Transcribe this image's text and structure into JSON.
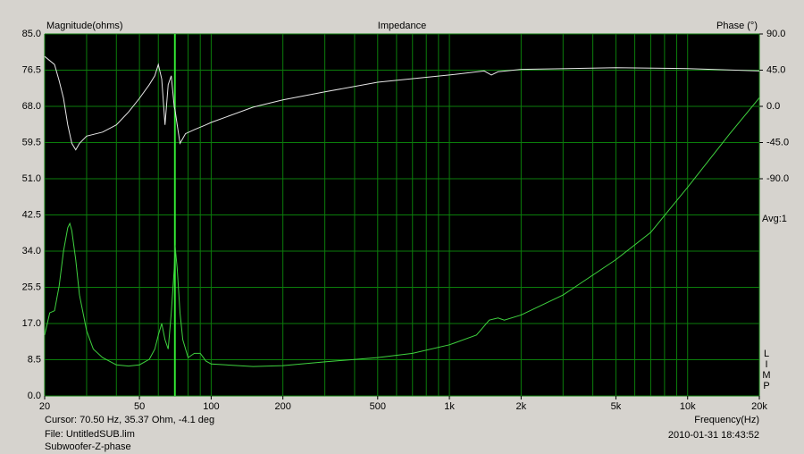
{
  "chart_data": {
    "type": "line",
    "title": "Impedance",
    "y_label": "Magnitude(ohms)",
    "y2_label": "Phase (°)",
    "x_label": "Frequency(Hz)",
    "averaging": "Avg:1",
    "watermark": "LIMP",
    "cursor_text": "Cursor: 70.50 Hz, 35.37 Ohm, -4.1 deg",
    "file_text": "File: UntitledSUB.lim",
    "measurement_name": "Subwoofer-Z-phase",
    "timestamp": "2010-01-31 18:43:52",
    "x_scale": "log",
    "xlim": [
      20,
      20000
    ],
    "xticks": [
      20,
      50,
      100,
      200,
      500,
      {
        "value": 1000,
        "label": "1k"
      },
      {
        "value": 2000,
        "label": "2k"
      },
      {
        "value": 5000,
        "label": "5k"
      },
      {
        "value": 10000,
        "label": "10k"
      },
      {
        "value": 20000,
        "label": "20k"
      }
    ],
    "xgrid": [
      20,
      30,
      40,
      50,
      60,
      70,
      80,
      90,
      100,
      200,
      300,
      400,
      500,
      600,
      700,
      800,
      900,
      1000,
      2000,
      3000,
      4000,
      5000,
      6000,
      7000,
      8000,
      9000,
      10000,
      20000
    ],
    "ylim": [
      0,
      85
    ],
    "yticks": [
      {
        "value": 0,
        "label": "0.0"
      },
      8.5,
      {
        "value": 17,
        "label": "17.0"
      },
      25.5,
      {
        "value": 34,
        "label": "34.0"
      },
      42.5,
      {
        "value": 51,
        "label": "51.0"
      },
      59.5,
      {
        "value": 68,
        "label": "68.0"
      },
      76.5,
      {
        "value": 85,
        "label": "85.0"
      }
    ],
    "y2lim": [
      -360,
      90
    ],
    "y2ticks": [
      {
        "value": 90,
        "label": "90.0"
      },
      {
        "value": 45,
        "label": "45.0"
      },
      {
        "value": 0,
        "label": "0.0"
      },
      {
        "value": -45,
        "label": "-45.0"
      },
      {
        "value": -90,
        "label": "-90.0"
      }
    ],
    "grid": true,
    "grid_color": "#0b7d0b",
    "cursor_x": 70.5,
    "cursor_color": "#3cff3c",
    "series": [
      {
        "name": "Impedance",
        "color": "#3fd23f",
        "x": [
          20,
          21,
          22,
          23,
          24,
          25,
          25.5,
          26,
          27,
          28,
          30,
          32,
          35,
          40,
          45,
          50,
          55,
          58,
          60,
          62,
          64,
          66,
          68,
          70,
          70.5,
          72,
          74,
          76,
          80,
          85,
          90,
          95,
          100,
          150,
          200,
          300,
          500,
          700,
          1000,
          1300,
          1470,
          1600,
          1700,
          2000,
          3000,
          5000,
          7000,
          10000,
          15000,
          20000
        ],
        "values": [
          14.3,
          19.5,
          20,
          25.8,
          34,
          39.5,
          40.5,
          38.8,
          32,
          23.7,
          15.3,
          11,
          9,
          7.3,
          7,
          7.3,
          8.6,
          11,
          14.3,
          17,
          13.2,
          11,
          19.5,
          30,
          35.37,
          30,
          19.5,
          13.2,
          9,
          10,
          10,
          8.2,
          7.5,
          6.9,
          7.1,
          8,
          9,
          10,
          12,
          14.3,
          17.8,
          18.3,
          17.8,
          19,
          23.7,
          32,
          38.4,
          49,
          61.5,
          70
        ]
      },
      {
        "name": "Phase",
        "color": "#e6e6e6",
        "axis": "y2",
        "x": [
          20,
          22,
          23,
          24,
          25,
          26,
          27,
          28,
          30,
          35,
          40,
          45,
          50,
          55,
          58,
          60,
          62,
          64,
          66,
          68,
          70,
          70.5,
          72,
          74,
          78,
          85,
          95,
          100,
          150,
          200,
          300,
          500,
          1000,
          1400,
          1500,
          1600,
          2000,
          5000,
          10000,
          20000
        ],
        "values": [
          62,
          52,
          32,
          10,
          -23,
          -46,
          -54,
          -46,
          -37,
          -32,
          -23,
          -7,
          10,
          27,
          38,
          52,
          34,
          -23,
          27,
          38,
          -1,
          -4.1,
          -23,
          -46,
          -34,
          -29,
          -23,
          -20,
          -1,
          8,
          18,
          30,
          39,
          44,
          39,
          43,
          46,
          48,
          47,
          44
        ]
      }
    ]
  }
}
